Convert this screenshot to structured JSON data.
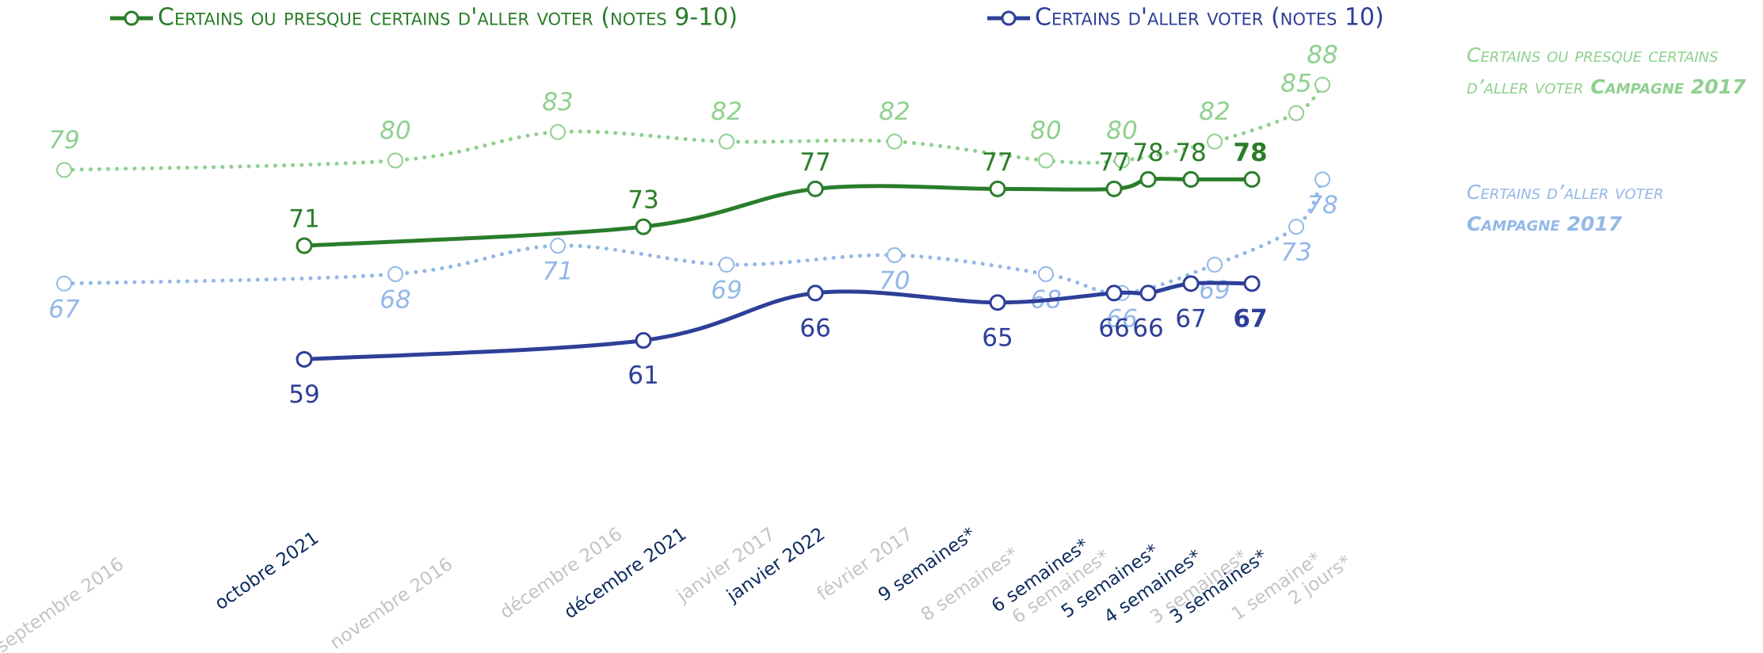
{
  "chart_data": {
    "type": "line",
    "ylim": [
      50,
      90
    ],
    "series": [
      {
        "name": "Certains ou presque certains d'aller voter (notes 9-10)",
        "color": "#2a7d2a",
        "style": "solid",
        "legend": true,
        "categories": [
          "octobre 2021",
          "décembre 2021",
          "janvier 2022",
          "9 semaines*",
          "6 semaines*",
          "5 semaines*",
          "4 semaines*",
          "3 semaines*"
        ],
        "values": [
          71,
          73,
          77,
          77,
          77,
          78,
          78,
          78
        ]
      },
      {
        "name": "Certains d'aller voter (notes 10)",
        "color": "#2e3f98",
        "style": "solid",
        "legend": true,
        "categories": [
          "octobre 2021",
          "décembre 2021",
          "janvier 2022",
          "9 semaines*",
          "6 semaines*",
          "5 semaines*",
          "4 semaines*",
          "3 semaines*"
        ],
        "values": [
          59,
          61,
          66,
          65,
          66,
          66,
          67,
          67
        ]
      },
      {
        "name_lines": [
          [
            "Certains ou presque certains"
          ],
          [
            "d’aller voter",
            "Campagne 2017"
          ]
        ],
        "color": "#8fd08f",
        "style": "dotted",
        "legend": false,
        "categories": [
          "septembre 2016",
          "novembre 2016",
          "décembre 2016",
          "janvier 2017",
          "février 2017",
          "8 semaines*",
          "6 semaines*",
          "3 semaines*",
          "1 semaine*",
          "2 jours*"
        ],
        "values": [
          79,
          80,
          83,
          82,
          82,
          80,
          80,
          82,
          85,
          88
        ]
      },
      {
        "name_lines": [
          [
            "Certains d’aller voter"
          ],
          [
            "Campagne 2017"
          ]
        ],
        "color": "#93b8e8",
        "style": "dotted",
        "legend": false,
        "categories": [
          "septembre 2016",
          "novembre 2016",
          "décembre 2016",
          "janvier 2017",
          "février 2017",
          "8 semaines*",
          "6 semaines*",
          "3 semaines*",
          "1 semaine*",
          "2 jours*"
        ],
        "values": [
          67,
          68,
          71,
          69,
          70,
          68,
          66,
          69,
          73,
          78
        ]
      }
    ]
  }
}
